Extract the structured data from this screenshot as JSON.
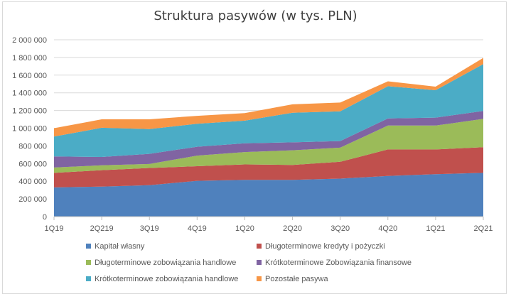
{
  "chart_data": {
    "type": "area",
    "stacked": true,
    "title": "Struktura pasywów (w tys. PLN)",
    "categories": [
      "1Q19",
      "2Q219",
      "3Q19",
      "4Q19",
      "1Q20",
      "2Q20",
      "3Q20",
      "4Q20",
      "1Q21",
      "2Q21"
    ],
    "ylim": [
      0,
      2000000
    ],
    "yticks": [
      0,
      200000,
      400000,
      600000,
      800000,
      1000000,
      1200000,
      1400000,
      1600000,
      1800000,
      2000000
    ],
    "ytick_labels": [
      "0",
      "200 000",
      "400 000",
      "600 000",
      "800 000",
      "1 000 000",
      "1 200 000",
      "1 400 000",
      "1 600 000",
      "1 800 000",
      "2 000 000"
    ],
    "grid": true,
    "legend_position": "bottom",
    "series": [
      {
        "name": "Kapitał własny",
        "color": "#4f81bd",
        "values": [
          330000,
          340000,
          355000,
          405000,
          415000,
          415000,
          430000,
          460000,
          480000,
          495000
        ]
      },
      {
        "name": "Długoterminowe kredyty i pożyczki",
        "color": "#c0504d",
        "values": [
          165000,
          185000,
          195000,
          165000,
          175000,
          170000,
          190000,
          300000,
          280000,
          290000
        ]
      },
      {
        "name": "Długoterminowe zobowiązania handlowe",
        "color": "#9bbb59",
        "values": [
          60000,
          55000,
          45000,
          120000,
          140000,
          165000,
          160000,
          270000,
          270000,
          320000
        ]
      },
      {
        "name": "Krótkoterminowe Zobowiązania finansowe",
        "color": "#8064a2",
        "values": [
          125000,
          95000,
          115000,
          100000,
          100000,
          90000,
          75000,
          80000,
          90000,
          90000
        ]
      },
      {
        "name": "Krótkoterminowe zobowiązania handlowe",
        "color": "#4bacc6",
        "values": [
          225000,
          330000,
          280000,
          260000,
          255000,
          335000,
          335000,
          365000,
          310000,
          530000
        ]
      },
      {
        "name": "Pozostałe pasywa",
        "color": "#f79646",
        "values": [
          95000,
          95000,
          110000,
          90000,
          85000,
          95000,
          100000,
          55000,
          40000,
          70000
        ]
      }
    ]
  }
}
